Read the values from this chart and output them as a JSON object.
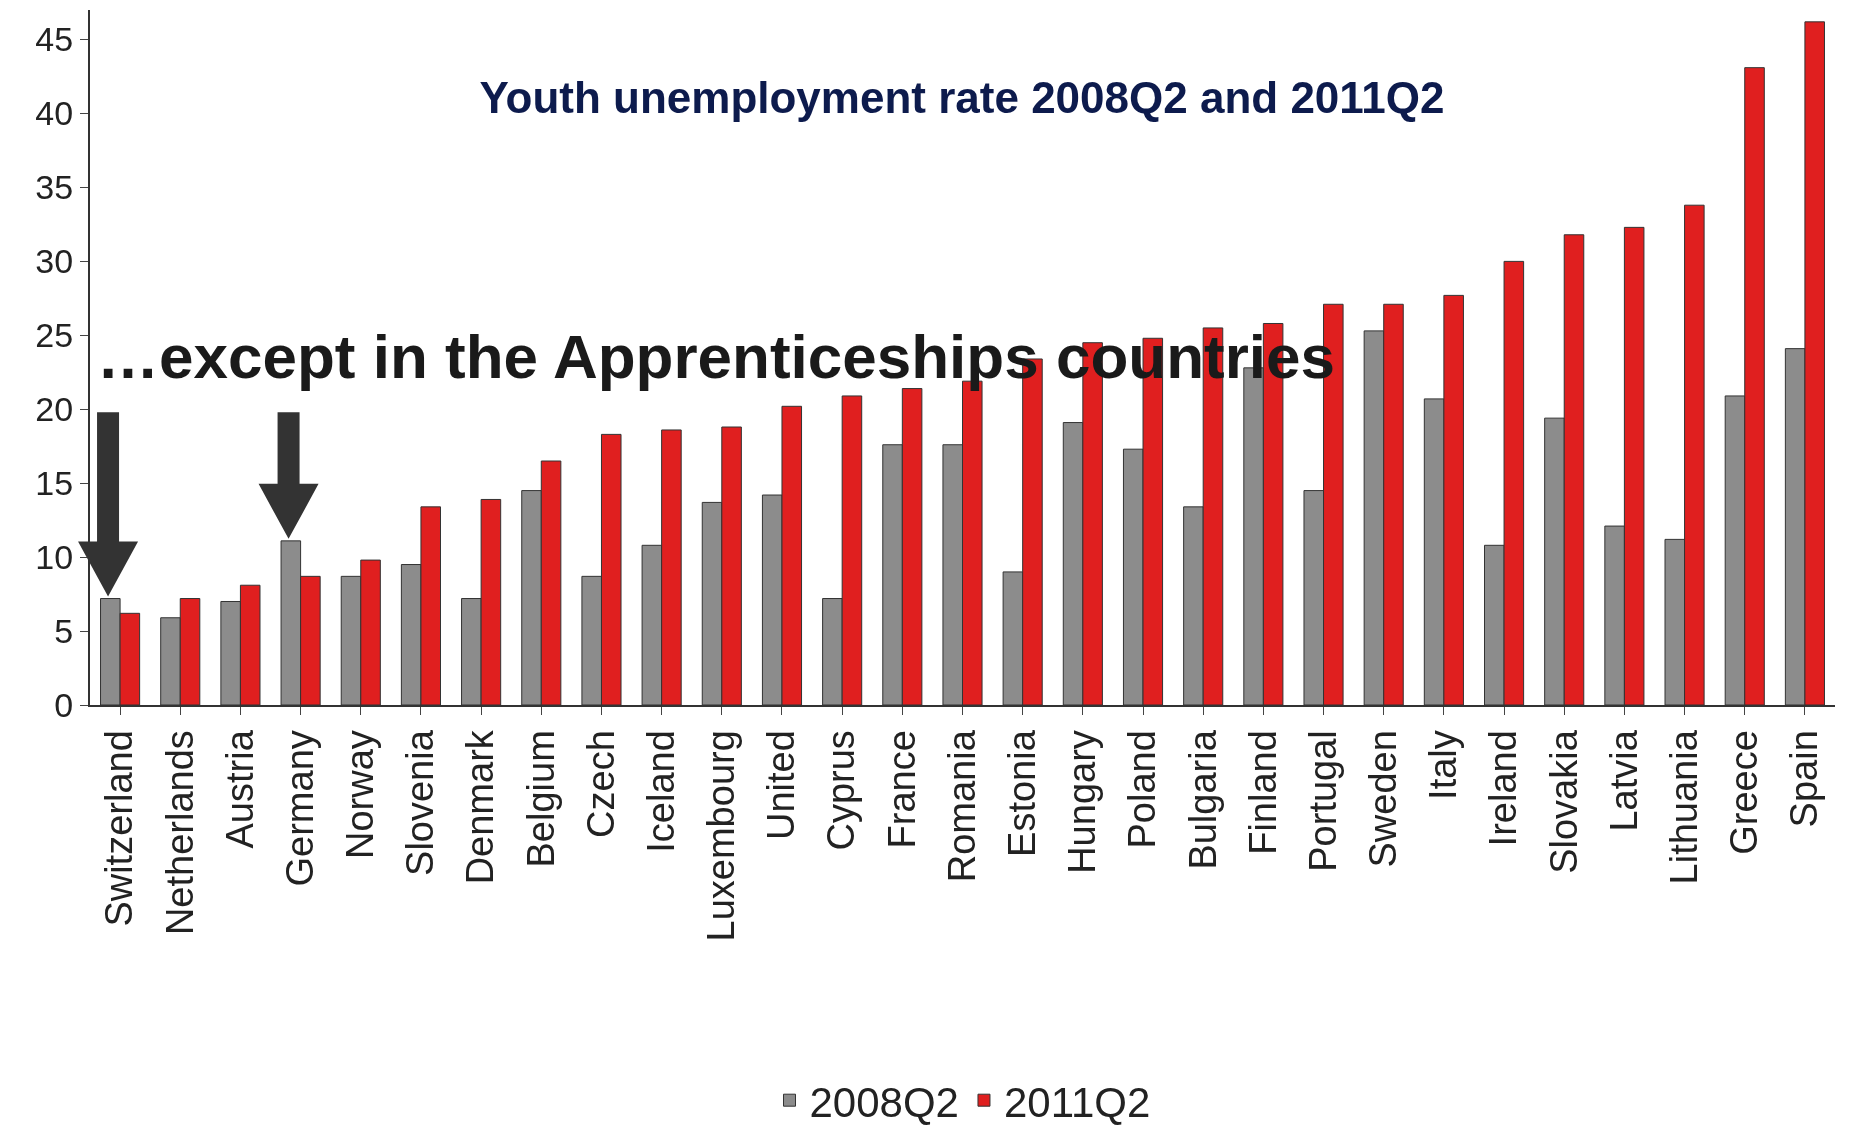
{
  "chart_data": {
    "type": "bar",
    "title": "Youth unemployment rate 2008Q2 and 2011Q2",
    "categories": [
      "Switzerland",
      "Netherlands",
      "Austria",
      "Germany",
      "Norway",
      "Slovenia",
      "Denmark",
      "Belgium",
      "Czech",
      "Iceland",
      "Luxembourg",
      "United",
      "Cyprus",
      "France",
      "Romania",
      "Estonia",
      "Hungary",
      "Poland",
      "Bulgaria",
      "Finland",
      "Portugal",
      "Sweden",
      "Italy",
      "Ireland",
      "Slovakia",
      "Latvia",
      "Lithuania",
      "Greece",
      "Spain"
    ],
    "series": [
      {
        "name": "2008Q2",
        "color": "#8c8c8c",
        "values": [
          7.2,
          5.9,
          7.0,
          11.1,
          8.7,
          9.5,
          7.2,
          14.5,
          8.7,
          10.8,
          13.7,
          14.2,
          7.2,
          17.6,
          17.6,
          9.0,
          19.1,
          17.3,
          13.4,
          22.8,
          14.5,
          25.3,
          20.7,
          10.8,
          19.4,
          12.1,
          11.2,
          20.9,
          24.1
        ]
      },
      {
        "name": "2011Q2",
        "color": "#e01f1f",
        "values": [
          6.2,
          7.2,
          8.1,
          8.7,
          9.8,
          13.4,
          13.9,
          16.5,
          18.3,
          18.6,
          18.8,
          20.2,
          20.9,
          21.4,
          21.9,
          23.4,
          24.5,
          24.8,
          25.5,
          25.8,
          27.1,
          27.1,
          27.7,
          30.0,
          31.8,
          32.3,
          33.8,
          43.1,
          46.2
        ]
      }
    ],
    "ylim": [
      0,
      47
    ],
    "yticks": [
      0,
      5,
      10,
      15,
      20,
      25,
      30,
      35,
      40,
      45
    ],
    "grid": false,
    "legend": "bottom",
    "annotations": [
      "…except in the Apprenticeships countries"
    ]
  }
}
